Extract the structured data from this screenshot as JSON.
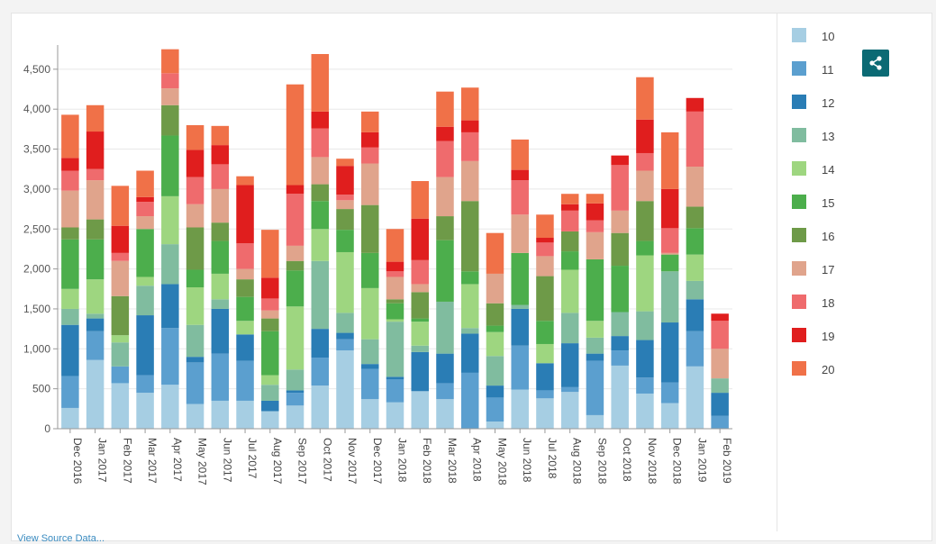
{
  "chart_data": {
    "type": "bar",
    "stacked": true,
    "title": "",
    "xlabel": "",
    "ylabel": "",
    "ylim": [
      0,
      4750
    ],
    "yticks": [
      0,
      500,
      1000,
      1500,
      2000,
      2500,
      3000,
      3500,
      4000,
      4500
    ],
    "ytick_labels": [
      "0",
      "500",
      "1,000",
      "1,500",
      "2,000",
      "2,500",
      "3,000",
      "3,500",
      "4,000",
      "4,500"
    ],
    "grid": true,
    "legend_position": "right",
    "categories": [
      "Dec 2016",
      "Jan 2017",
      "Feb 2017",
      "Mar 2017",
      "Apr 2017",
      "May 2017",
      "Jun 2017",
      "Jul 2017",
      "Aug 2017",
      "Sep 2017",
      "Oct 2017",
      "Nov 2017",
      "Dec 2017",
      "Jan 2018",
      "Feb 2018",
      "Mar 2018",
      "Apr 2018",
      "May 2018",
      "Jun 2018",
      "Jul 2018",
      "Aug 2018",
      "Sep 2018",
      "Oct 2018",
      "Nov 2018",
      "Dec 2018",
      "Jan 2019",
      "Feb 2019"
    ],
    "series": [
      {
        "name": "10",
        "color": "#a6cee3",
        "values": [
          260,
          860,
          570,
          450,
          550,
          310,
          350,
          350,
          220,
          290,
          540,
          980,
          370,
          330,
          470,
          370,
          0,
          90,
          490,
          380,
          460,
          170,
          790,
          440,
          320,
          780,
          0
        ]
      },
      {
        "name": "11",
        "color": "#5b9fcf",
        "values": [
          400,
          360,
          210,
          220,
          710,
          520,
          590,
          500,
          0,
          160,
          350,
          140,
          380,
          290,
          0,
          200,
          700,
          300,
          550,
          100,
          60,
          680,
          190,
          200,
          260,
          440,
          160
        ]
      },
      {
        "name": "12",
        "color": "#2a7db5",
        "values": [
          640,
          160,
          0,
          750,
          550,
          70,
          560,
          330,
          130,
          30,
          360,
          80,
          60,
          30,
          490,
          370,
          490,
          150,
          460,
          340,
          550,
          90,
          180,
          470,
          750,
          400,
          290
        ]
      },
      {
        "name": "13",
        "color": "#80bc9f",
        "values": [
          200,
          60,
          300,
          370,
          500,
          400,
          120,
          0,
          200,
          260,
          850,
          250,
          310,
          690,
          80,
          650,
          70,
          370,
          50,
          0,
          380,
          200,
          300,
          360,
          640,
          230,
          180
        ]
      },
      {
        "name": "14",
        "color": "#9ed680",
        "values": [
          250,
          430,
          90,
          110,
          600,
          470,
          320,
          170,
          120,
          790,
          400,
          760,
          640,
          30,
          300,
          0,
          550,
          300,
          0,
          240,
          540,
          210,
          0,
          700,
          0,
          330,
          0
        ]
      },
      {
        "name": "15",
        "color": "#4cae4c",
        "values": [
          620,
          500,
          0,
          600,
          760,
          220,
          410,
          300,
          550,
          450,
          350,
          280,
          440,
          200,
          40,
          770,
          160,
          80,
          650,
          290,
          230,
          770,
          580,
          180,
          210,
          330,
          0
        ]
      },
      {
        "name": "16",
        "color": "#6e9a48",
        "values": [
          150,
          250,
          490,
          0,
          380,
          530,
          230,
          220,
          160,
          120,
          210,
          260,
          600,
          50,
          330,
          300,
          880,
          280,
          0,
          560,
          250,
          0,
          410,
          500,
          0,
          270,
          0
        ]
      },
      {
        "name": "17",
        "color": "#e0a48c",
        "values": [
          460,
          490,
          440,
          160,
          210,
          290,
          420,
          130,
          100,
          190,
          340,
          110,
          520,
          280,
          100,
          490,
          500,
          370,
          480,
          250,
          0,
          340,
          280,
          380,
          20,
          500,
          370
        ]
      },
      {
        "name": "18",
        "color": "#ef6b6d",
        "values": [
          250,
          140,
          100,
          180,
          190,
          340,
          310,
          320,
          150,
          650,
          360,
          70,
          200,
          70,
          300,
          450,
          360,
          0,
          430,
          170,
          260,
          150,
          570,
          220,
          310,
          690,
          350
        ]
      },
      {
        "name": "19",
        "color": "#e01e1e",
        "values": [
          160,
          470,
          340,
          60,
          0,
          340,
          240,
          730,
          260,
          110,
          210,
          360,
          190,
          120,
          520,
          180,
          150,
          0,
          130,
          60,
          80,
          210,
          120,
          420,
          490,
          170,
          90
        ]
      },
      {
        "name": "20",
        "color": "#f07148",
        "values": [
          540,
          330,
          500,
          330,
          300,
          310,
          240,
          110,
          600,
          1260,
          720,
          90,
          260,
          410,
          470,
          440,
          410,
          510,
          380,
          290,
          130,
          120,
          0,
          530,
          710,
          0,
          0
        ]
      }
    ]
  },
  "share_button": {
    "icon": "share-icon"
  },
  "footer": {
    "text": "View Source Data..."
  }
}
